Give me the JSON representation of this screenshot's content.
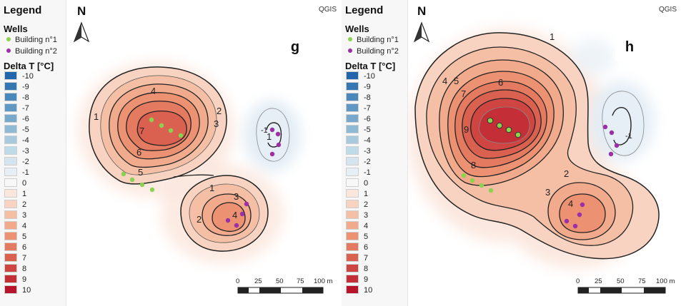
{
  "legend": {
    "title": "Legend",
    "wells_title": "Wells",
    "wells": [
      {
        "label": "Building n°1",
        "color": "#8bd24f"
      },
      {
        "label": "Building n°2",
        "color": "#9b2fa6"
      }
    ],
    "delta_title": "Delta T [°C]",
    "ramp": [
      {
        "label": "-10",
        "color": "#2166ac"
      },
      {
        "label": "-9",
        "color": "#3577b3"
      },
      {
        "label": "-8",
        "color": "#4a88bb"
      },
      {
        "label": "-7",
        "color": "#5f98c4"
      },
      {
        "label": "-6",
        "color": "#77a9cd"
      },
      {
        "label": "-5",
        "color": "#8fbad6"
      },
      {
        "label": "-4",
        "color": "#a7cadf"
      },
      {
        "label": "-3",
        "color": "#bfdae8"
      },
      {
        "label": "-2",
        "color": "#d4e5ef"
      },
      {
        "label": "-1",
        "color": "#e6eff5"
      },
      {
        "label": "0",
        "color": "#f8f8f8"
      },
      {
        "label": "1",
        "color": "#fbe6dc"
      },
      {
        "label": "2",
        "color": "#f8d3c1"
      },
      {
        "label": "3",
        "color": "#f5bfa5"
      },
      {
        "label": "4",
        "color": "#f1aa8b"
      },
      {
        "label": "5",
        "color": "#ec9273"
      },
      {
        "label": "6",
        "color": "#e47a60"
      },
      {
        "label": "7",
        "color": "#da6150"
      },
      {
        "label": "8",
        "color": "#cf4542"
      },
      {
        "label": "9",
        "color": "#c42e36"
      },
      {
        "label": "10",
        "color": "#b7132b"
      }
    ]
  },
  "maps": {
    "g": {
      "panel_label": "g",
      "north": "N",
      "software": "QGIS",
      "contour_labels": [
        "1",
        "2",
        "3",
        "4",
        "5",
        "6",
        "7",
        "1",
        "1",
        "2",
        "3",
        "4",
        "-1"
      ],
      "scale_labels": [
        "0",
        "25",
        "50",
        "75",
        "100 m"
      ]
    },
    "h": {
      "panel_label": "h",
      "north": "N",
      "software": "QGIS",
      "contour_labels": [
        "1",
        "2",
        "3",
        "4",
        "5",
        "6",
        "7",
        "8",
        "9",
        "4",
        "-1"
      ],
      "scale_labels": [
        "0",
        "25",
        "50",
        "75",
        "100 m"
      ]
    }
  },
  "colors": {
    "building1": "#8bd24f",
    "building2": "#9b2fa6",
    "warm_core": "#d6463f",
    "cold_core": "#d7e6f1"
  }
}
